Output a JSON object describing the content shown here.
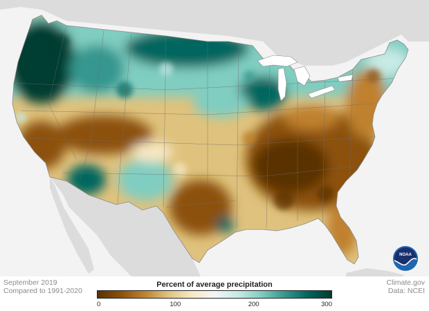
{
  "caption": {
    "date": "September 2019",
    "baseline": "Compared to 1991-2020",
    "credit": "Climate.gov",
    "source": "Data: NCEI"
  },
  "legend": {
    "title": "Percent of average precipitation",
    "ticks": [
      {
        "value": 0,
        "label": "0"
      },
      {
        "value": 100,
        "label": "100"
      },
      {
        "value": 200,
        "label": "200"
      },
      {
        "value": 300,
        "label": "300"
      }
    ],
    "range": [
      0,
      300
    ],
    "colors": [
      "#5a3202",
      "#8c510a",
      "#bf812d",
      "#dfc27d",
      "#f6e8c3",
      "#f5f5f5",
      "#c7eae5",
      "#80cdc1",
      "#35978f",
      "#01665e",
      "#003c30"
    ]
  },
  "logo": {
    "text": "NOAA",
    "colors": {
      "outer": "#1d66b0",
      "inner": "#1a2f6e",
      "wave": "#ffffff"
    }
  },
  "map_colors": {
    "ocean": "#f3f3f3",
    "neighbor_land": "#dcdcdc",
    "state_lines": "#6e6e6e"
  }
}
